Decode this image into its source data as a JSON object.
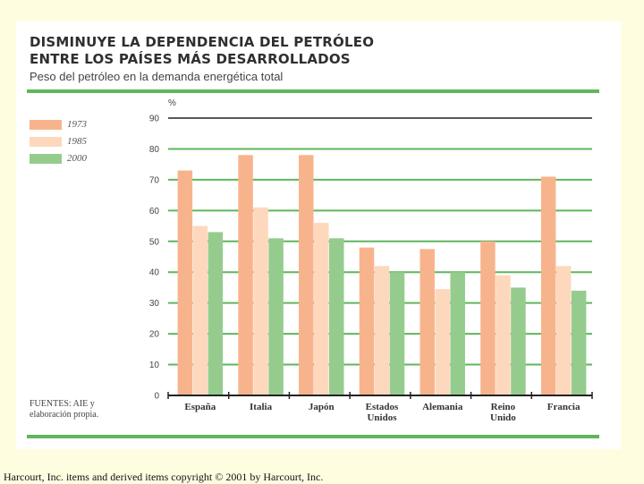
{
  "title_line1": "DISMINUYE LA DEPENDENCIA DEL PETRÓLEO",
  "title_line2": "ENTRE LOS PAÍSES MÁS DESARROLLADOS",
  "subtitle": "Peso del petróleo en la demanda energética total",
  "source_line1": "FUENTES: AIE y",
  "source_line2": "elaboración propia.",
  "footer": "Harcourt, Inc. items and derived items copyright © 2001 by Harcourt, Inc.",
  "colors": {
    "background": "#fffde0",
    "rule": "#5fb65c",
    "grid": "#5fb65c"
  },
  "chart_data": {
    "type": "bar",
    "ylabel": "%",
    "ylim": [
      0,
      90
    ],
    "yticks": [
      0,
      10,
      20,
      30,
      40,
      50,
      60,
      70,
      80,
      90
    ],
    "grid": true,
    "legend_position": "left",
    "categories": [
      [
        "España"
      ],
      [
        "Italia"
      ],
      [
        "Japón"
      ],
      [
        "Estados",
        "Unidos"
      ],
      [
        "Alemania"
      ],
      [
        "Reino",
        "Unido"
      ],
      [
        "Francia"
      ]
    ],
    "series": [
      {
        "name": "1973",
        "color": "#f7b48c",
        "values": [
          73,
          78,
          78,
          48,
          47.5,
          50,
          71
        ]
      },
      {
        "name": "1985",
        "color": "#fdd8bd",
        "values": [
          55,
          61,
          56,
          42,
          34.5,
          39,
          42
        ]
      },
      {
        "name": "2000",
        "color": "#95cc8e",
        "values": [
          53,
          51,
          51,
          40,
          40,
          35,
          34
        ]
      }
    ]
  }
}
